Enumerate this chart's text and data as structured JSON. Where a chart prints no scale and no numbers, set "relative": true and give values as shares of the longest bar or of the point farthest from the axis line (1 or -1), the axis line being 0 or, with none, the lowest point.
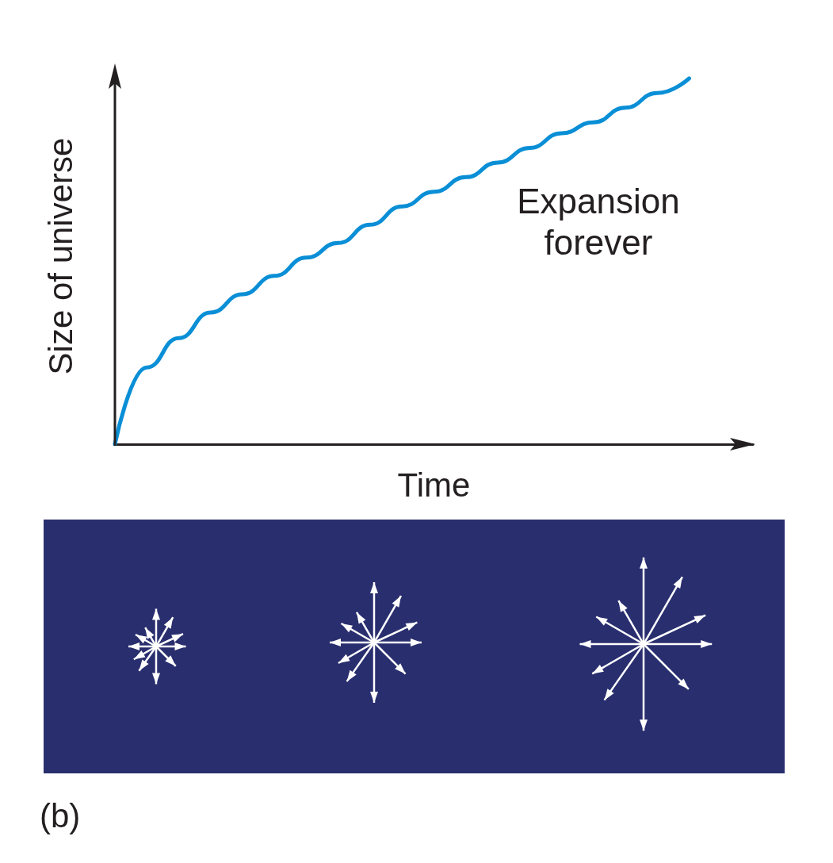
{
  "chart_data": {
    "type": "line",
    "relative": true,
    "xlabel": "Time",
    "ylabel": "Size of universe",
    "categories": [
      null,
      null,
      null,
      null,
      null,
      null,
      null,
      null,
      null,
      null,
      null,
      null,
      null,
      null,
      null,
      null,
      null,
      null,
      null,
      null,
      null
    ],
    "series": [
      {
        "color": "#0a8fd6",
        "values": [
          0,
          0.21,
          0.29,
          0.36,
          0.41,
          0.46,
          0.51,
          0.55,
          0.6,
          0.65,
          0.69,
          0.73,
          0.77,
          0.81,
          0.85,
          0.88,
          0.92,
          0.96,
          1,
          null,
          null
        ]
      }
    ],
    "marker": "none",
    "line_style": "solid",
    "annotations": [
      {
        "text": "Expansion forever"
      },
      "(b)"
    ]
  }
}
